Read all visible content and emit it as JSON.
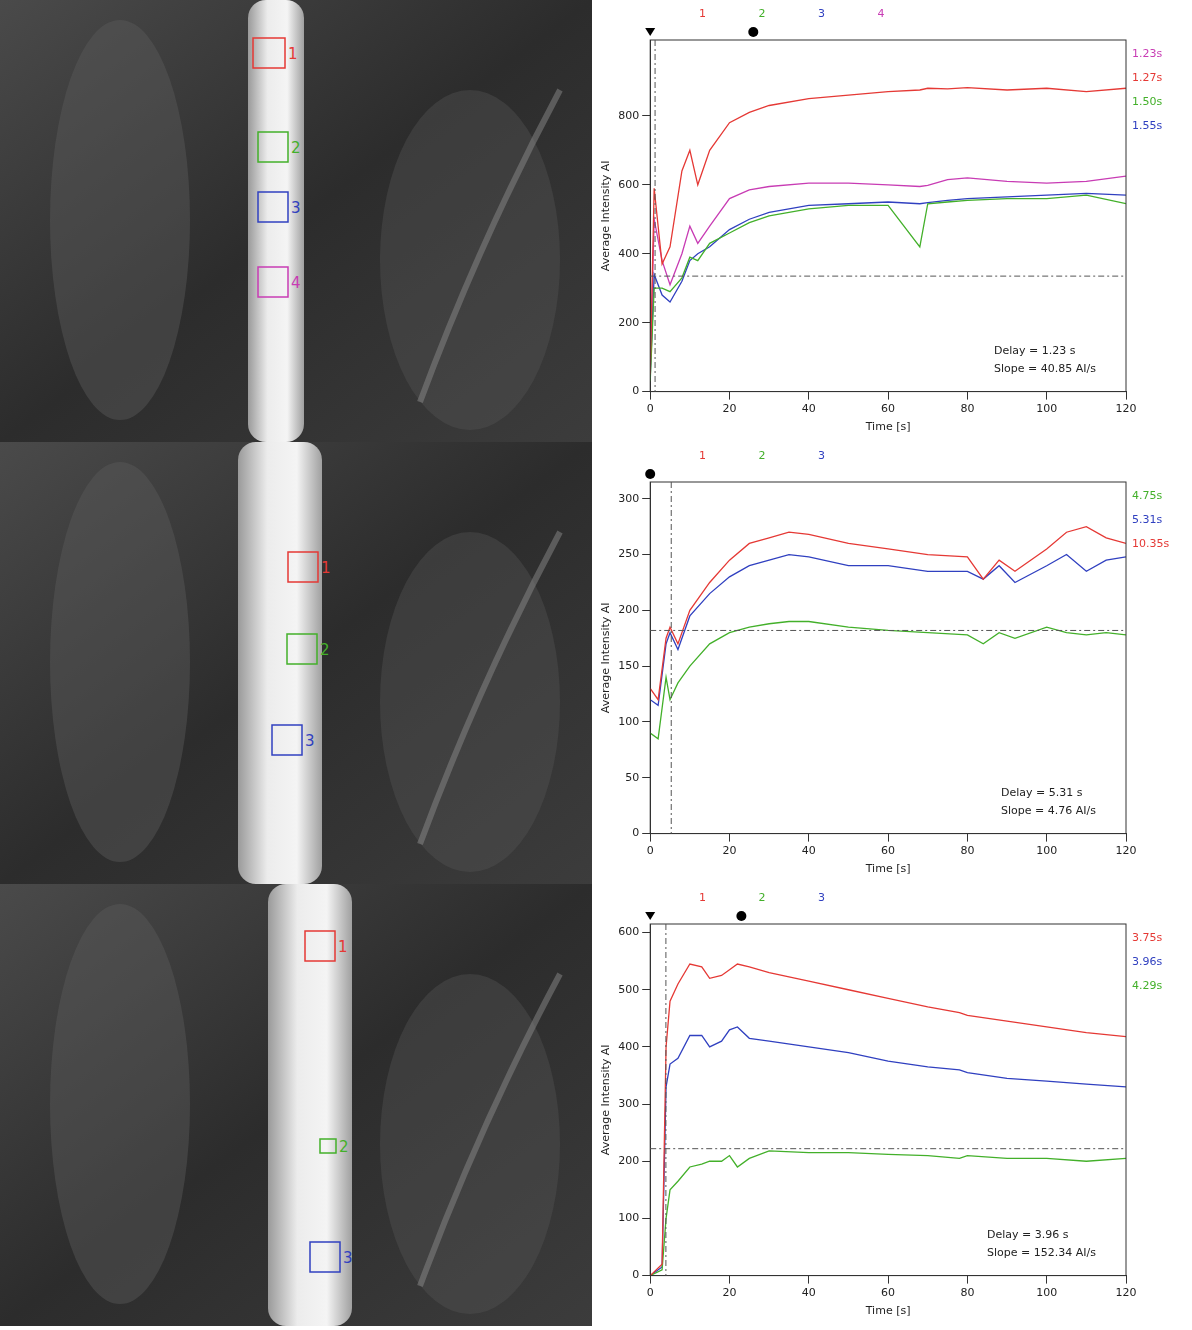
{
  "chart_data": [
    {
      "type": "line",
      "xlabel": "Time [s]",
      "ylabel": "Average Intensity AI",
      "x": [
        0,
        1,
        3,
        5,
        8,
        10,
        12,
        15,
        20,
        25,
        30,
        40,
        50,
        60,
        68,
        70,
        75,
        80,
        90,
        100,
        110,
        120
      ],
      "series": [
        {
          "name": "1",
          "color": "#e53935",
          "values": [
            50,
            590,
            370,
            420,
            640,
            700,
            600,
            700,
            780,
            810,
            830,
            850,
            860,
            870,
            875,
            880,
            878,
            882,
            875,
            880,
            870,
            880
          ]
        },
        {
          "name": "2",
          "color": "#43b02a",
          "values": [
            30,
            300,
            300,
            290,
            330,
            390,
            380,
            430,
            460,
            490,
            510,
            530,
            540,
            540,
            420,
            545,
            550,
            555,
            560,
            560,
            570,
            545
          ]
        },
        {
          "name": "3",
          "color": "#3040c0",
          "values": [
            40,
            340,
            280,
            260,
            320,
            380,
            400,
            420,
            470,
            500,
            520,
            540,
            545,
            550,
            545,
            548,
            555,
            560,
            565,
            570,
            575,
            570
          ]
        },
        {
          "name": "4",
          "color": "#c83cb4",
          "values": [
            50,
            500,
            380,
            310,
            400,
            480,
            430,
            480,
            560,
            585,
            595,
            605,
            605,
            600,
            595,
            598,
            615,
            620,
            610,
            605,
            610,
            625
          ]
        }
      ],
      "xlim": [
        0,
        120
      ],
      "xticks": [
        0,
        20,
        40,
        60,
        80,
        100,
        120
      ],
      "ylim": [
        0,
        1020
      ],
      "yticks": [
        0,
        200,
        400,
        600,
        800
      ],
      "grid": false,
      "legend": "top",
      "threshold": 335,
      "delay_line": 1.23,
      "cursors": [
        {
          "x": 0,
          "marker": "triangle"
        },
        {
          "x": 26,
          "marker": "circle"
        }
      ],
      "side_labels": [
        {
          "text": "1.23s",
          "color": "#c83cb4"
        },
        {
          "text": "1.27s",
          "color": "#e53935"
        },
        {
          "text": "1.50s",
          "color": "#43b02a"
        },
        {
          "text": "1.55s",
          "color": "#3040c0"
        }
      ],
      "annotations": [
        "Delay = 1.23 s",
        "Slope = 40.85 AI/s"
      ]
    },
    {
      "type": "line",
      "xlabel": "Time [s]",
      "ylabel": "Average Intensity AI",
      "x": [
        0,
        2,
        4,
        5,
        7,
        10,
        15,
        20,
        25,
        30,
        35,
        40,
        50,
        60,
        70,
        80,
        84,
        88,
        92,
        100,
        105,
        110,
        115,
        120
      ],
      "series": [
        {
          "name": "1",
          "color": "#e53935",
          "values": [
            130,
            120,
            175,
            185,
            170,
            200,
            225,
            245,
            260,
            265,
            270,
            268,
            260,
            255,
            250,
            248,
            228,
            245,
            235,
            255,
            270,
            275,
            265,
            260
          ]
        },
        {
          "name": "2",
          "color": "#43b02a",
          "values": [
            90,
            85,
            140,
            120,
            135,
            150,
            170,
            180,
            185,
            188,
            190,
            190,
            185,
            182,
            180,
            178,
            170,
            180,
            175,
            185,
            180,
            178,
            180,
            178
          ]
        },
        {
          "name": "3",
          "color": "#3040c0",
          "values": [
            120,
            115,
            170,
            180,
            165,
            195,
            215,
            230,
            240,
            245,
            250,
            248,
            240,
            240,
            235,
            235,
            228,
            240,
            225,
            240,
            250,
            235,
            245,
            248
          ]
        }
      ],
      "xlim": [
        0,
        120
      ],
      "xticks": [
        0,
        20,
        40,
        60,
        80,
        100,
        120
      ],
      "ylim": [
        0,
        315
      ],
      "yticks": [
        0,
        50,
        100,
        150,
        200,
        250,
        300
      ],
      "grid": false,
      "legend": "top",
      "threshold": 182,
      "delay_line": 5.31,
      "cursors": [
        {
          "x": 0,
          "marker": "circle"
        }
      ],
      "side_labels": [
        {
          "text": "4.75s",
          "color": "#43b02a"
        },
        {
          "text": "5.31s",
          "color": "#3040c0"
        },
        {
          "text": "10.35s",
          "color": "#e53935"
        }
      ],
      "annotations": [
        "Delay = 5.31 s",
        "Slope = 4.76 AI/s"
      ]
    },
    {
      "type": "line",
      "xlabel": "Time [s]",
      "ylabel": "Average Intensity AI",
      "x": [
        0,
        3,
        4,
        5,
        7,
        10,
        13,
        15,
        18,
        20,
        22,
        25,
        30,
        40,
        50,
        60,
        70,
        78,
        80,
        90,
        100,
        110,
        120
      ],
      "series": [
        {
          "name": "1",
          "color": "#e53935",
          "values": [
            0,
            20,
            400,
            480,
            510,
            545,
            540,
            520,
            525,
            535,
            545,
            540,
            530,
            515,
            500,
            485,
            470,
            460,
            455,
            445,
            435,
            425,
            418
          ]
        },
        {
          "name": "2",
          "color": "#43b02a",
          "values": [
            0,
            10,
            100,
            150,
            165,
            190,
            195,
            200,
            200,
            210,
            190,
            205,
            218,
            215,
            215,
            212,
            210,
            205,
            210,
            205,
            205,
            200,
            205
          ]
        },
        {
          "name": "3",
          "color": "#3040c0",
          "values": [
            0,
            15,
            330,
            370,
            380,
            420,
            420,
            400,
            410,
            430,
            435,
            415,
            410,
            400,
            390,
            375,
            365,
            360,
            355,
            345,
            340,
            335,
            330
          ]
        }
      ],
      "xlim": [
        0,
        120
      ],
      "xticks": [
        0,
        20,
        40,
        60,
        80,
        100,
        120
      ],
      "ylim": [
        0,
        615
      ],
      "yticks": [
        0,
        100,
        200,
        300,
        400,
        500,
        600
      ],
      "grid": false,
      "legend": "top",
      "threshold": 222,
      "delay_line": 3.96,
      "cursors": [
        {
          "x": 0,
          "marker": "triangle"
        },
        {
          "x": 23,
          "marker": "circle"
        }
      ],
      "side_labels": [
        {
          "text": "3.75s",
          "color": "#e53935"
        },
        {
          "text": "3.96s",
          "color": "#3040c0"
        },
        {
          "text": "4.29s",
          "color": "#43b02a"
        }
      ],
      "annotations": [
        "Delay = 3.96 s",
        "Slope = 152.34 AI/s"
      ]
    }
  ],
  "images": [
    {
      "rois": [
        {
          "label": "1",
          "color": "#e53935"
        },
        {
          "label": "2",
          "color": "#43b02a"
        },
        {
          "label": "3",
          "color": "#3040c0"
        },
        {
          "label": "4",
          "color": "#c83cb4"
        }
      ]
    },
    {
      "rois": [
        {
          "label": "1",
          "color": "#e53935"
        },
        {
          "label": "2",
          "color": "#43b02a"
        },
        {
          "label": "3",
          "color": "#3040c0"
        }
      ]
    },
    {
      "rois": [
        {
          "label": "1",
          "color": "#e53935"
        },
        {
          "label": "2",
          "color": "#43b02a"
        },
        {
          "label": "3",
          "color": "#3040c0"
        }
      ]
    }
  ]
}
